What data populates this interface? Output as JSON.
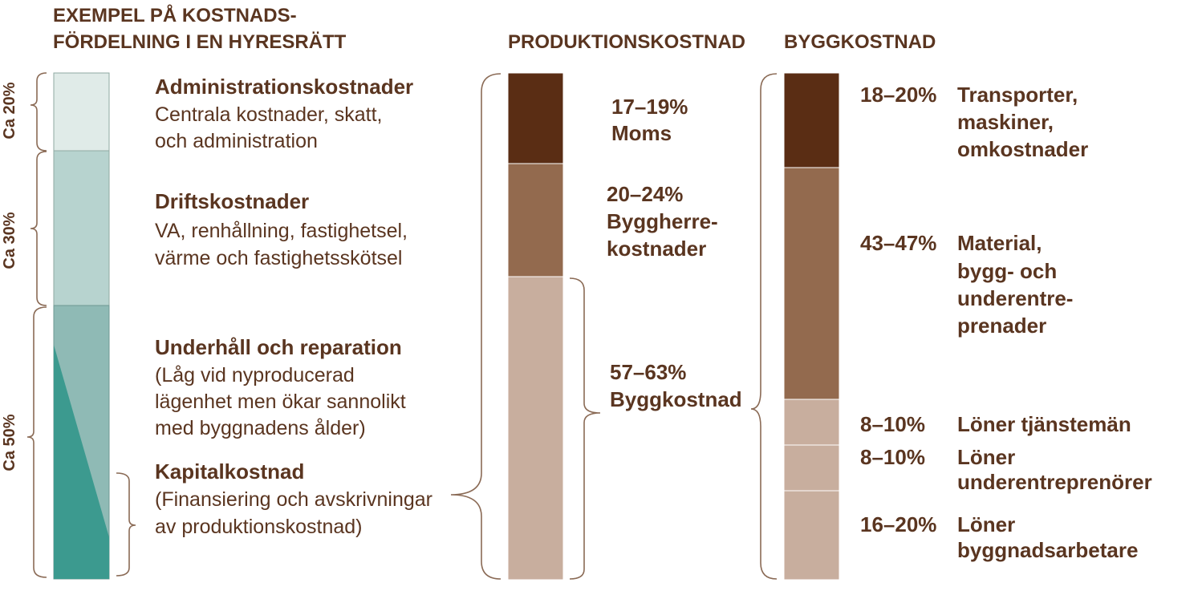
{
  "headings": {
    "left_line1": "EXEMPEL PÅ KOSTNADS-",
    "left_line2": "FÖRDELNING I EN HYRESRÄTT",
    "production": "PRODUKTIONSKOSTNAD",
    "build": "BYGGKOSTNAD"
  },
  "left_bar": {
    "combined_share": "Ca 50%",
    "segments": [
      {
        "share": "Ca 20%",
        "title": "Administrationskostnader",
        "desc": [
          "Centrala kostnader, skatt,",
          "och administration"
        ],
        "color": "#e0ebe8"
      },
      {
        "share": "Ca 30%",
        "title": "Driftskostnader",
        "desc": [
          "VA, renhållning, fastighetsel,",
          "värme och fastighetsskötsel"
        ],
        "color": "#b7d3cf"
      },
      {
        "title": "Underhåll och reparation",
        "desc": [
          "(Låg vid nyproducerad",
          "lägenhet men ökar sannolikt",
          "med byggnadens ålder)"
        ],
        "color": "#8fbab5"
      },
      {
        "title": "Kapitalkostnad",
        "desc": [
          "(Finansiering och avskrivningar",
          "av produktionskostnad)"
        ],
        "color": "#3c9a8f"
      }
    ]
  },
  "production_bar": {
    "segments": [
      {
        "share": "17–19%",
        "label": [
          "Moms"
        ],
        "color": "#5a2d14"
      },
      {
        "share": "20–24%",
        "label": [
          "Byggherre-",
          "kostnader"
        ],
        "color": "#936a4e"
      },
      {
        "share": "57–63%",
        "label": [
          "Byggkostnad"
        ],
        "color": "#c8ae9e"
      }
    ]
  },
  "build_bar": {
    "segments": [
      {
        "share": "18–20%",
        "label": [
          "Transporter,",
          "maskiner,",
          "omkostnader"
        ],
        "color": "#5a2d14"
      },
      {
        "share": "43–47%",
        "label": [
          "Material,",
          "bygg- och",
          "underentre-",
          "prenader"
        ],
        "color": "#936a4e"
      },
      {
        "share": "8–10%",
        "label": [
          "Löner tjänstemän"
        ],
        "color": "#c8ae9e"
      },
      {
        "share": "8–10%",
        "label": [
          "Löner",
          "underentreprenörer"
        ],
        "color": "#c8ae9e"
      },
      {
        "share": "16–20%",
        "label": [
          "Löner",
          "byggnadsarbetare"
        ],
        "color": "#c8ae9e"
      }
    ]
  },
  "colors": {
    "text": "#5a3520",
    "brace": "#8a6a55"
  }
}
